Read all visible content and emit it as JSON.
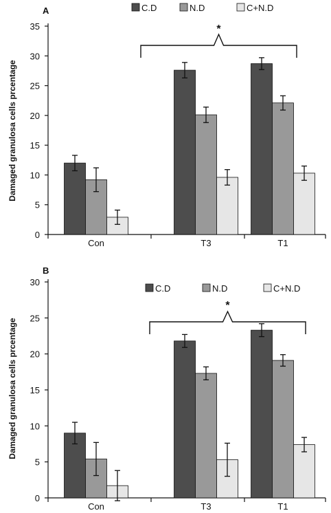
{
  "chart_data": [
    {
      "panel": "A",
      "type": "bar",
      "categories": [
        "Con",
        "T3",
        "T1"
      ],
      "series": [
        {
          "name": "C.D",
          "color": "#4d4d4d",
          "values": [
            12,
            27.6,
            28.7
          ],
          "errors": [
            1.3,
            1.3,
            1.0
          ]
        },
        {
          "name": "N.D",
          "color": "#999999",
          "values": [
            9.2,
            20.1,
            22.1
          ],
          "errors": [
            2.0,
            1.3,
            1.2
          ]
        },
        {
          "name": "C+N.D",
          "color": "#e6e6e6",
          "values": [
            2.9,
            9.6,
            10.3
          ],
          "errors": [
            1.2,
            1.3,
            1.2
          ]
        }
      ],
      "ylabel": "Damaged granulosa cells prcentage",
      "ylim": [
        0,
        35
      ],
      "yticks": [
        0,
        5,
        10,
        15,
        20,
        25,
        30,
        35
      ],
      "annotation": "*",
      "legend_position": "top"
    },
    {
      "panel": "B",
      "type": "bar",
      "categories": [
        "Con",
        "T3",
        "T1"
      ],
      "series": [
        {
          "name": "C.D",
          "color": "#4d4d4d",
          "values": [
            9,
            21.8,
            23.3
          ],
          "errors": [
            1.5,
            0.9,
            0.9
          ]
        },
        {
          "name": "N.D",
          "color": "#999999",
          "values": [
            5.4,
            17.3,
            19.1
          ],
          "errors": [
            2.3,
            0.9,
            0.8
          ]
        },
        {
          "name": "C+N.D",
          "color": "#e6e6e6",
          "values": [
            1.7,
            5.3,
            7.4
          ],
          "errors": [
            2.1,
            2.3,
            1.0
          ]
        }
      ],
      "ylabel": "Damaged granulosa cells prcentage",
      "ylim": [
        0,
        30
      ],
      "yticks": [
        0,
        5,
        10,
        15,
        20,
        25,
        30
      ],
      "annotation": "*",
      "legend_position": "top"
    }
  ]
}
